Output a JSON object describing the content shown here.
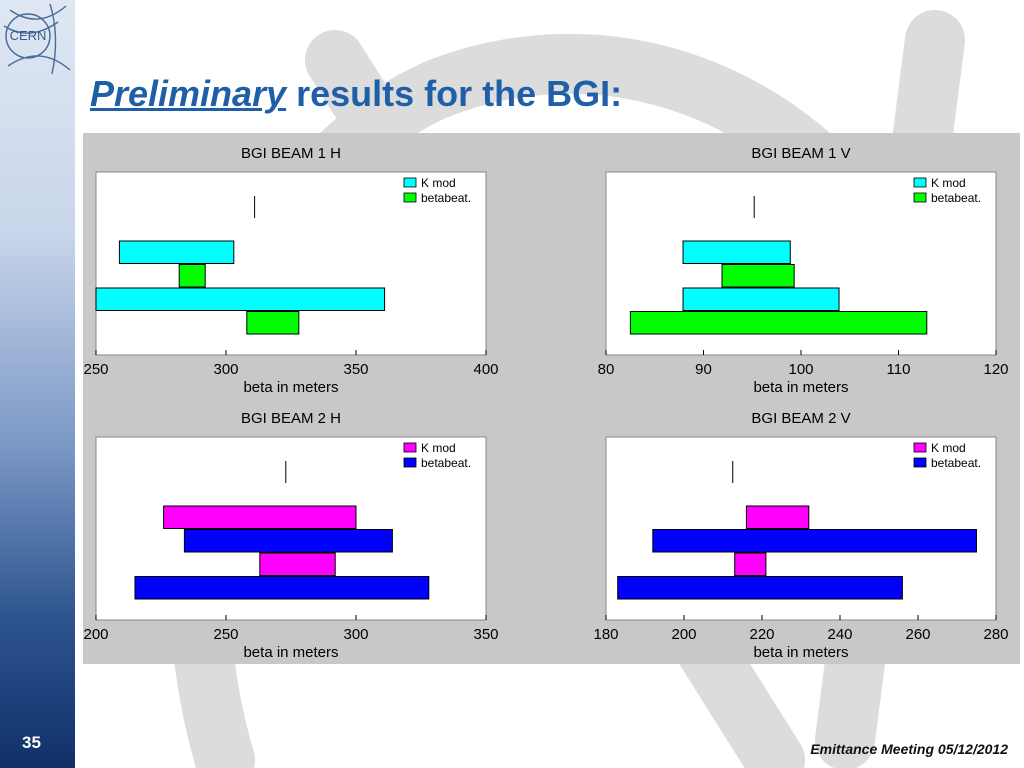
{
  "slide": {
    "title_emphasis": "Preliminary",
    "title_rest": "results for the BGI:",
    "number": "35",
    "footer": "Emittance Meeting 05/12/2012",
    "logo_text": "CERN"
  },
  "colors": {
    "title": "#1f5fa8",
    "cyan": "#00ffff",
    "green": "#00ff00",
    "magenta": "#ff00ff",
    "blue": "#0000ff",
    "panel": "#c8c8c8"
  },
  "chart_data": [
    {
      "type": "bar",
      "orientation": "horizontal",
      "title": "BGI BEAM 1 H",
      "xlabel": "beta in meters",
      "xlim": [
        250,
        400
      ],
      "xticks": [
        250,
        300,
        350,
        400
      ],
      "legend": [
        {
          "label": "K mod",
          "color": "#00ffff"
        },
        {
          "label": "betabeat.",
          "color": "#00ff00"
        }
      ],
      "legend_position": "top-right",
      "marker_x": 311,
      "bars": [
        {
          "series": "K mod",
          "start": 259,
          "end": 303
        },
        {
          "series": "betabeat.",
          "start": 282,
          "end": 292
        },
        {
          "series": "K mod",
          "start": 250,
          "end": 361
        },
        {
          "series": "betabeat.",
          "start": 308,
          "end": 328
        }
      ]
    },
    {
      "type": "bar",
      "orientation": "horizontal",
      "title": "BGI BEAM 1 V",
      "xlabel": "beta in meters",
      "xlim": [
        80,
        120
      ],
      "xticks": [
        80,
        90,
        100,
        110,
        120
      ],
      "legend": [
        {
          "label": "K mod",
          "color": "#00ffff"
        },
        {
          "label": "betabeat.",
          "color": "#00ff00"
        }
      ],
      "legend_position": "top-right",
      "marker_x": 95.2,
      "bars": [
        {
          "series": "K mod",
          "start": 87.9,
          "end": 98.9
        },
        {
          "series": "betabeat.",
          "start": 91.9,
          "end": 99.3
        },
        {
          "series": "K mod",
          "start": 87.9,
          "end": 103.9
        },
        {
          "series": "betabeat.",
          "start": 82.5,
          "end": 112.9
        }
      ]
    },
    {
      "type": "bar",
      "orientation": "horizontal",
      "title": "BGI BEAM 2 H",
      "xlabel": "beta in meters",
      "xlim": [
        200,
        350
      ],
      "xticks": [
        200,
        250,
        300,
        350
      ],
      "legend": [
        {
          "label": "K mod",
          "color": "#ff00ff"
        },
        {
          "label": "betabeat.",
          "color": "#0000ff"
        }
      ],
      "legend_position": "top-right",
      "marker_x": 273,
      "bars": [
        {
          "series": "K mod",
          "start": 226,
          "end": 300
        },
        {
          "series": "betabeat.",
          "start": 234,
          "end": 314
        },
        {
          "series": "K mod",
          "start": 263,
          "end": 292
        },
        {
          "series": "betabeat.",
          "start": 215,
          "end": 328
        }
      ]
    },
    {
      "type": "bar",
      "orientation": "horizontal",
      "title": "BGI BEAM 2 V",
      "xlabel": "beta in meters",
      "xlim": [
        180,
        280
      ],
      "xticks": [
        180,
        200,
        220,
        240,
        260,
        280
      ],
      "legend": [
        {
          "label": "K mod",
          "color": "#ff00ff"
        },
        {
          "label": "betabeat.",
          "color": "#0000ff"
        }
      ],
      "legend_position": "top-right",
      "marker_x": 212.5,
      "bars": [
        {
          "series": "K mod",
          "start": 216,
          "end": 232
        },
        {
          "series": "betabeat.",
          "start": 192,
          "end": 275
        },
        {
          "series": "K mod",
          "start": 213,
          "end": 221
        },
        {
          "series": "betabeat.",
          "start": 183,
          "end": 256
        }
      ]
    }
  ]
}
